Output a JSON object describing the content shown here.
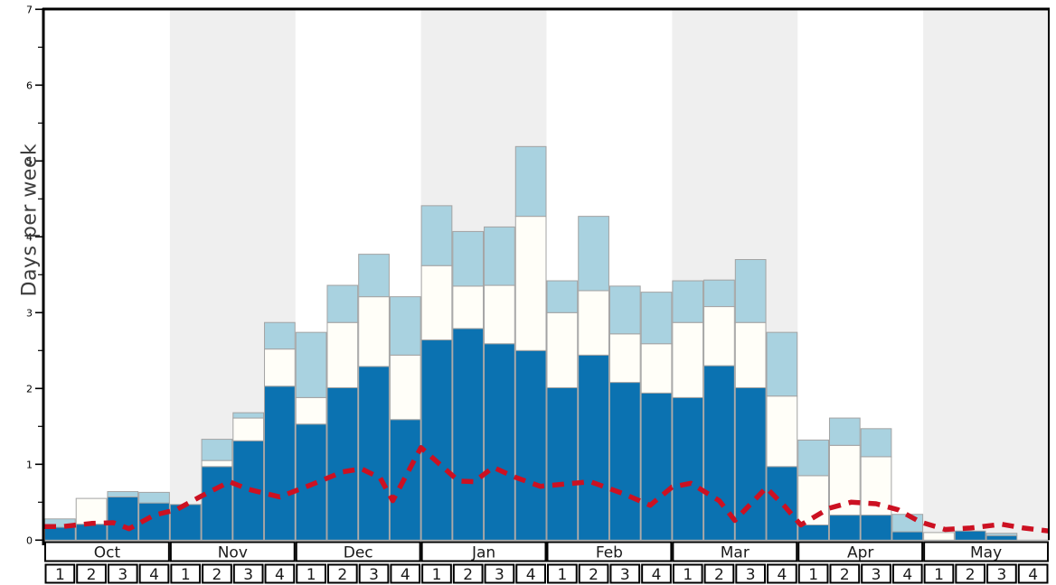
{
  "chart_data": {
    "type": "bar",
    "subtype": "stacked-bars-with-dashed-trend-line",
    "title": "",
    "ylabel": "Days per week",
    "xlabel": "",
    "ylim": [
      0,
      7
    ],
    "y_major_ticks": [
      0,
      1,
      2,
      3,
      4,
      5,
      6,
      7
    ],
    "y_minor_tick_step": 0.5,
    "grid": "off",
    "legend": "none",
    "months": [
      "Oct",
      "Nov",
      "Dec",
      "Jan",
      "Feb",
      "Mar",
      "Apr",
      "May"
    ],
    "shaded_month_indices": [
      1,
      3,
      5,
      7
    ],
    "weeks_per_month": 4,
    "week_labels": [
      "1",
      "2",
      "3",
      "4"
    ],
    "stack_note": "values are cumulative stack tops per week (32 weeks, Oct w1 .. May w4), units = days per week",
    "series": [
      {
        "name": "dark-blue-bottom",
        "color": "#0b72b1",
        "cumulative_tops": [
          0.17,
          0.21,
          0.57,
          0.49,
          0.47,
          0.97,
          1.31,
          2.03,
          1.53,
          2.01,
          2.29,
          1.59,
          2.64,
          2.79,
          2.59,
          2.5,
          2.01,
          2.44,
          2.08,
          1.94,
          1.88,
          2.3,
          2.01,
          0.97,
          0.2,
          0.33,
          0.33,
          0.11,
          0.0,
          0.12,
          0.06,
          0.0
        ]
      },
      {
        "name": "white-middle",
        "color": "#fffef8",
        "cumulative_tops": [
          0.17,
          0.55,
          0.57,
          0.49,
          0.47,
          1.05,
          1.61,
          2.52,
          1.88,
          2.87,
          3.21,
          2.44,
          3.62,
          3.35,
          3.36,
          4.27,
          3.0,
          3.29,
          2.72,
          2.59,
          2.87,
          3.08,
          2.87,
          1.9,
          0.85,
          1.25,
          1.1,
          0.11,
          0.1,
          0.12,
          0.06,
          0.0
        ]
      },
      {
        "name": "light-blue-top",
        "color": "#a9d2e0",
        "cumulative_tops": [
          0.28,
          0.55,
          0.64,
          0.63,
          0.47,
          1.33,
          1.68,
          2.87,
          2.74,
          3.36,
          3.77,
          3.21,
          4.41,
          4.07,
          4.13,
          5.19,
          3.42,
          4.27,
          3.35,
          3.27,
          3.42,
          3.43,
          3.7,
          2.74,
          1.32,
          1.61,
          1.47,
          0.34,
          0.1,
          0.12,
          0.09,
          0.0
        ]
      }
    ],
    "trend_line": {
      "name": "dashed-red-trend",
      "color": "#cc1122",
      "points_week_x_vs_days": [
        [
          0.0,
          0.18
        ],
        [
          0.6,
          0.18
        ],
        [
          1.5,
          0.22
        ],
        [
          2.2,
          0.23
        ],
        [
          2.7,
          0.15
        ],
        [
          3.5,
          0.33
        ],
        [
          4.2,
          0.4
        ],
        [
          5.0,
          0.58
        ],
        [
          5.9,
          0.77
        ],
        [
          6.5,
          0.67
        ],
        [
          7.5,
          0.57
        ],
        [
          8.5,
          0.73
        ],
        [
          9.5,
          0.9
        ],
        [
          10.1,
          0.94
        ],
        [
          10.7,
          0.82
        ],
        [
          11.1,
          0.52
        ],
        [
          12.0,
          1.22
        ],
        [
          12.6,
          1.0
        ],
        [
          13.2,
          0.78
        ],
        [
          13.7,
          0.77
        ],
        [
          14.3,
          0.96
        ],
        [
          15.0,
          0.83
        ],
        [
          15.8,
          0.71
        ],
        [
          16.6,
          0.74
        ],
        [
          17.4,
          0.77
        ],
        [
          18.4,
          0.62
        ],
        [
          19.3,
          0.46
        ],
        [
          20.0,
          0.7
        ],
        [
          20.6,
          0.75
        ],
        [
          21.5,
          0.52
        ],
        [
          22.0,
          0.26
        ],
        [
          23.0,
          0.69
        ],
        [
          23.6,
          0.44
        ],
        [
          24.1,
          0.2
        ],
        [
          25.0,
          0.42
        ],
        [
          25.7,
          0.5
        ],
        [
          26.5,
          0.48
        ],
        [
          27.2,
          0.4
        ],
        [
          27.9,
          0.24
        ],
        [
          28.7,
          0.14
        ],
        [
          29.5,
          0.16
        ],
        [
          30.5,
          0.21
        ],
        [
          31.2,
          0.16
        ],
        [
          32.0,
          0.12
        ]
      ]
    },
    "colors": {
      "band_gray": "#efefef",
      "bar_border": "#a3a3a3",
      "axis": "#000000",
      "table_border": "#000000",
      "tick_label": "#000000",
      "month_label": "#1a1a1a",
      "week_label": "#1a1a1a"
    }
  }
}
